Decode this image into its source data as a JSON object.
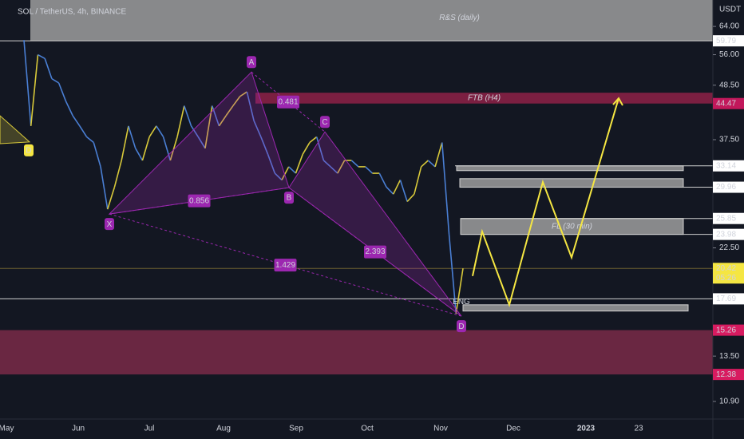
{
  "header": {
    "symbol": "SOL / TetherUS, 4h, BINANCE",
    "currency": "USDT"
  },
  "chart_data": {
    "type": "line",
    "log_scale": true,
    "ylim": [
      10.03,
      72.5
    ],
    "yticks": [
      {
        "value": 64,
        "label": "64.00"
      },
      {
        "value": 56,
        "label": "56.00"
      },
      {
        "value": 48.5,
        "label": "48.50"
      },
      {
        "value": 37.5,
        "label": "37.50"
      },
      {
        "value": 22.5,
        "label": "22.50"
      },
      {
        "value": 13.5,
        "label": "13.50"
      },
      {
        "value": 10.9,
        "label": "10.90"
      }
    ],
    "categories": [
      "May",
      "Jun",
      "Jul",
      "Aug",
      "Sep",
      "Oct",
      "Nov",
      "Dec",
      "2023",
      "23"
    ],
    "price": {
      "color": "#d8c93a",
      "values": [
        60,
        40,
        56,
        55,
        50,
        49,
        45,
        42,
        40,
        38,
        37,
        33,
        27,
        30,
        34,
        40,
        36,
        34,
        38,
        40,
        38,
        34,
        38,
        44,
        40,
        38,
        36,
        44,
        40,
        42,
        44,
        46,
        47,
        41,
        38,
        35,
        32,
        31,
        33,
        32,
        35,
        37,
        38,
        34,
        33,
        32,
        34,
        34,
        33,
        33,
        32,
        32,
        30,
        29,
        31,
        28,
        29,
        33,
        34,
        33,
        37,
        24,
        16.5,
        20.42
      ]
    },
    "levels": [
      {
        "value": 59.79,
        "color": "#ffffff"
      },
      {
        "value": 44.47,
        "color": "#c2185b"
      },
      {
        "value": 33.14,
        "color": "#ffffff"
      },
      {
        "value": 29.96,
        "color": "#ffffff"
      },
      {
        "value": 25.85,
        "color": "#ffffff"
      },
      {
        "value": 23.98,
        "color": "#ffffff"
      },
      {
        "value": 20.42,
        "color": "#f5e642"
      },
      {
        "value": 17.69,
        "color": "#ffffff"
      },
      {
        "value": 15.26,
        "color": "#d81b60"
      },
      {
        "value": 12.38,
        "color": "#d81b60"
      }
    ],
    "countdown": "05:26",
    "zones": [
      {
        "top": 72.5,
        "bottom": 59.79,
        "color": "#9e9e9e",
        "label": "R&S (daily)"
      },
      {
        "top": 46.8,
        "bottom": 44.47,
        "color": "#8e2146",
        "label": "FTB (H4)"
      },
      {
        "top": 33.14,
        "bottom": 32.4,
        "color": "#9e9e9e"
      },
      {
        "top": 31.2,
        "bottom": 29.96,
        "color": "#9e9e9e"
      },
      {
        "top": 25.85,
        "bottom": 23.98,
        "color": "#9e9e9e",
        "label": "FL (30 min)"
      },
      {
        "top": 17.2,
        "bottom": 16.7,
        "color": "#9e9e9e"
      },
      {
        "top": 15.26,
        "bottom": 12.38,
        "color": "#7a2a48"
      }
    ],
    "engulf_label": "ENG",
    "pattern": {
      "points": [
        {
          "label": "X",
          "value": 26.4
        },
        {
          "label": "A",
          "value": 51.6
        },
        {
          "label": "B",
          "value": 29.9
        },
        {
          "label": "C",
          "value": 38.9
        },
        {
          "label": "D",
          "value": 16.3
        }
      ],
      "ratios": [
        "0.481",
        "0.856",
        "2.393",
        "1.429"
      ]
    },
    "left_point": {
      "label": "D",
      "value": 37.1
    },
    "projection": [
      19.7,
      24.3,
      17.2,
      30.7,
      21.5,
      45.6
    ]
  }
}
